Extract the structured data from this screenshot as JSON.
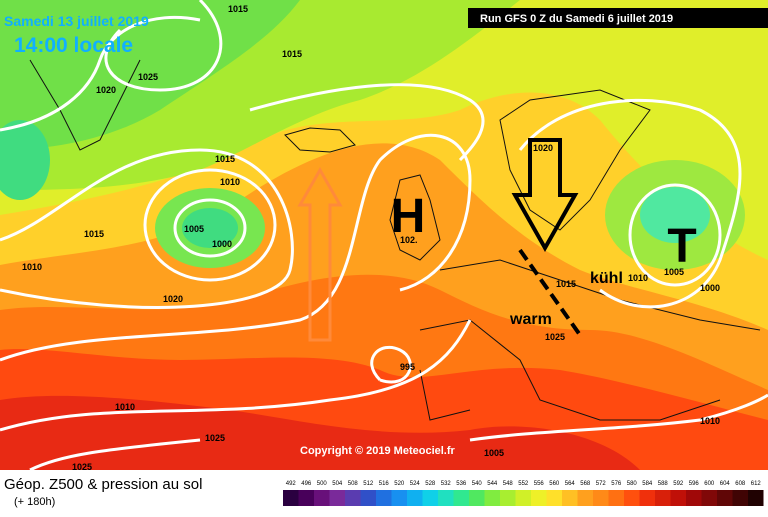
{
  "header": {
    "date": "Samedi 13 juillet 2019",
    "time": "14:00 locale",
    "run": "Run GFS 0 Z du Samedi 6 juillet 2019"
  },
  "map": {
    "high_label": "H",
    "low_label": "T",
    "cool_label": "kühl",
    "warm_label": "warm",
    "copyright": "Copyright © 2019 Meteociel.fr",
    "isobar_labels": [
      "1015",
      "1025",
      "1020",
      "1015",
      "1015",
      "1010",
      "1005",
      "1000",
      "1015",
      "1010",
      "1020",
      "1020",
      "102.",
      "1015",
      "1010",
      "1005",
      "1000",
      "995",
      "1010",
      "1025",
      "1025",
      "1025",
      "1010",
      "1005"
    ]
  },
  "footer": {
    "title": "Géop. Z500 & pression au sol",
    "subtitle": "(+ 180h)",
    "scale": [
      492,
      496,
      500,
      504,
      508,
      512,
      516,
      520,
      524,
      528,
      532,
      536,
      540,
      544,
      548,
      552,
      556,
      560,
      564,
      568,
      572,
      576,
      580,
      584,
      588,
      592,
      596,
      600,
      604,
      608,
      612
    ]
  }
}
